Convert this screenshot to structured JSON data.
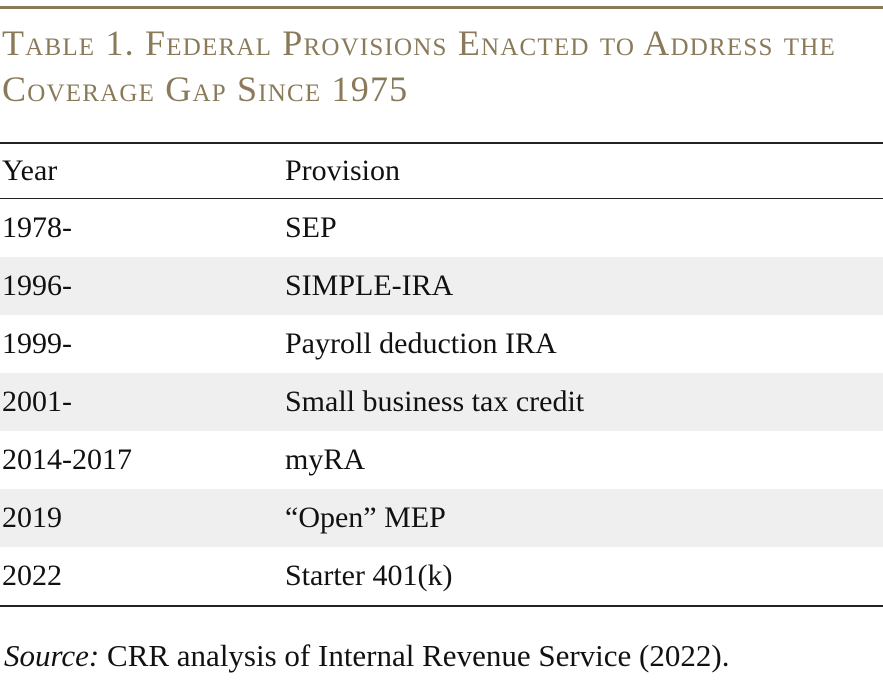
{
  "title": "Table 1. Federal Provisions Enacted to Address the Coverage Gap Since 1975",
  "columns": {
    "year": "Year",
    "provision": "Provision"
  },
  "rows": [
    {
      "year": "1978-",
      "provision": "SEP"
    },
    {
      "year": "1996-",
      "provision": "SIMPLE-IRA"
    },
    {
      "year": "1999-",
      "provision": "Payroll deduction IRA"
    },
    {
      "year": "2001-",
      "provision": "Small business tax credit"
    },
    {
      "year": "2014-2017",
      "provision": "myRA"
    },
    {
      "year": "2019",
      "provision": "“Open” MEP"
    },
    {
      "year": "2022",
      "provision": "Starter 401(k)"
    }
  ],
  "source": {
    "label": "Source:",
    "text": " CRR analysis of Internal Revenue Service (2022)."
  },
  "colors": {
    "accent": "#8a7a5a",
    "stripe": "#f0efef",
    "rule": "#222222"
  }
}
